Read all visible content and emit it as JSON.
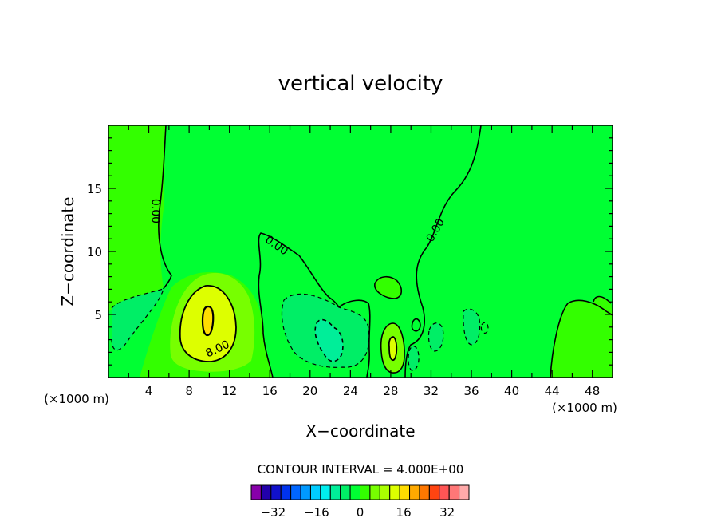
{
  "chart_data": {
    "type": "heatmap",
    "title": "vertical velocity",
    "xlabel": "X−coordinate",
    "ylabel": "Z−coordinate",
    "x_unit_left": "(×1000 m)",
    "x_unit_right": "(×1000 m)",
    "xlim": [
      0,
      50
    ],
    "ylim": [
      0,
      20
    ],
    "xticks": [
      4,
      8,
      12,
      16,
      20,
      24,
      28,
      32,
      36,
      40,
      44,
      48
    ],
    "yticks": [
      5,
      10,
      15
    ],
    "contour_interval_text": "CONTOUR INTERVAL = 4.000E+00",
    "contour_labels": [
      {
        "text": "0.00",
        "x": 4.7,
        "y": 13.2,
        "angle": 90
      },
      {
        "text": "0.00",
        "x": 16.7,
        "y": 10.5,
        "angle": 35
      },
      {
        "text": "0.00",
        "x": 32.4,
        "y": 11.7,
        "angle": -60
      },
      {
        "text": "8.00",
        "x": 10.8,
        "y": 2.3,
        "angle": -25
      }
    ],
    "features": [
      {
        "kind": "updraft",
        "x": 9.8,
        "z": 4.6,
        "peak": 16
      },
      {
        "kind": "updraft",
        "x": 28.3,
        "z": 2.3,
        "peak": 8
      },
      {
        "kind": "downdraft",
        "x": 21.8,
        "z": 3.2,
        "peak": -6
      },
      {
        "kind": "downdraft",
        "x": 1.8,
        "z": 4.2,
        "peak": -3
      },
      {
        "kind": "downdraft",
        "x": 36.2,
        "z": 4.0,
        "peak": -3
      }
    ],
    "colorbar": {
      "ticks": [
        -32,
        -16,
        0,
        16,
        32
      ],
      "tick_labels": [
        "−32",
        "−16",
        "0",
        "16",
        "32"
      ],
      "min": -40,
      "max": 40,
      "step": 4,
      "colors": [
        "#8800aa",
        "#2200aa",
        "#1111cc",
        "#0033ee",
        "#0066ff",
        "#0099ff",
        "#00ccff",
        "#00eeee",
        "#00ee99",
        "#00ee66",
        "#00ff33",
        "#33ff00",
        "#77ff00",
        "#aaff00",
        "#ddff00",
        "#ffdd00",
        "#ffaa00",
        "#ff7700",
        "#ff4411",
        "#ff5555",
        "#ff7777",
        "#ffaaaa"
      ]
    },
    "colors": {
      "background_field": "#00ff33",
      "weak_positive": "#33ff00",
      "moderate_positive": "#77ff00",
      "strong_positive": "#ddff00",
      "peak_positive": "#ffdd00",
      "weak_negative": "#00ee66",
      "moderate_negative": "#00ee99"
    },
    "grid": false,
    "legend": "bottom-center"
  }
}
